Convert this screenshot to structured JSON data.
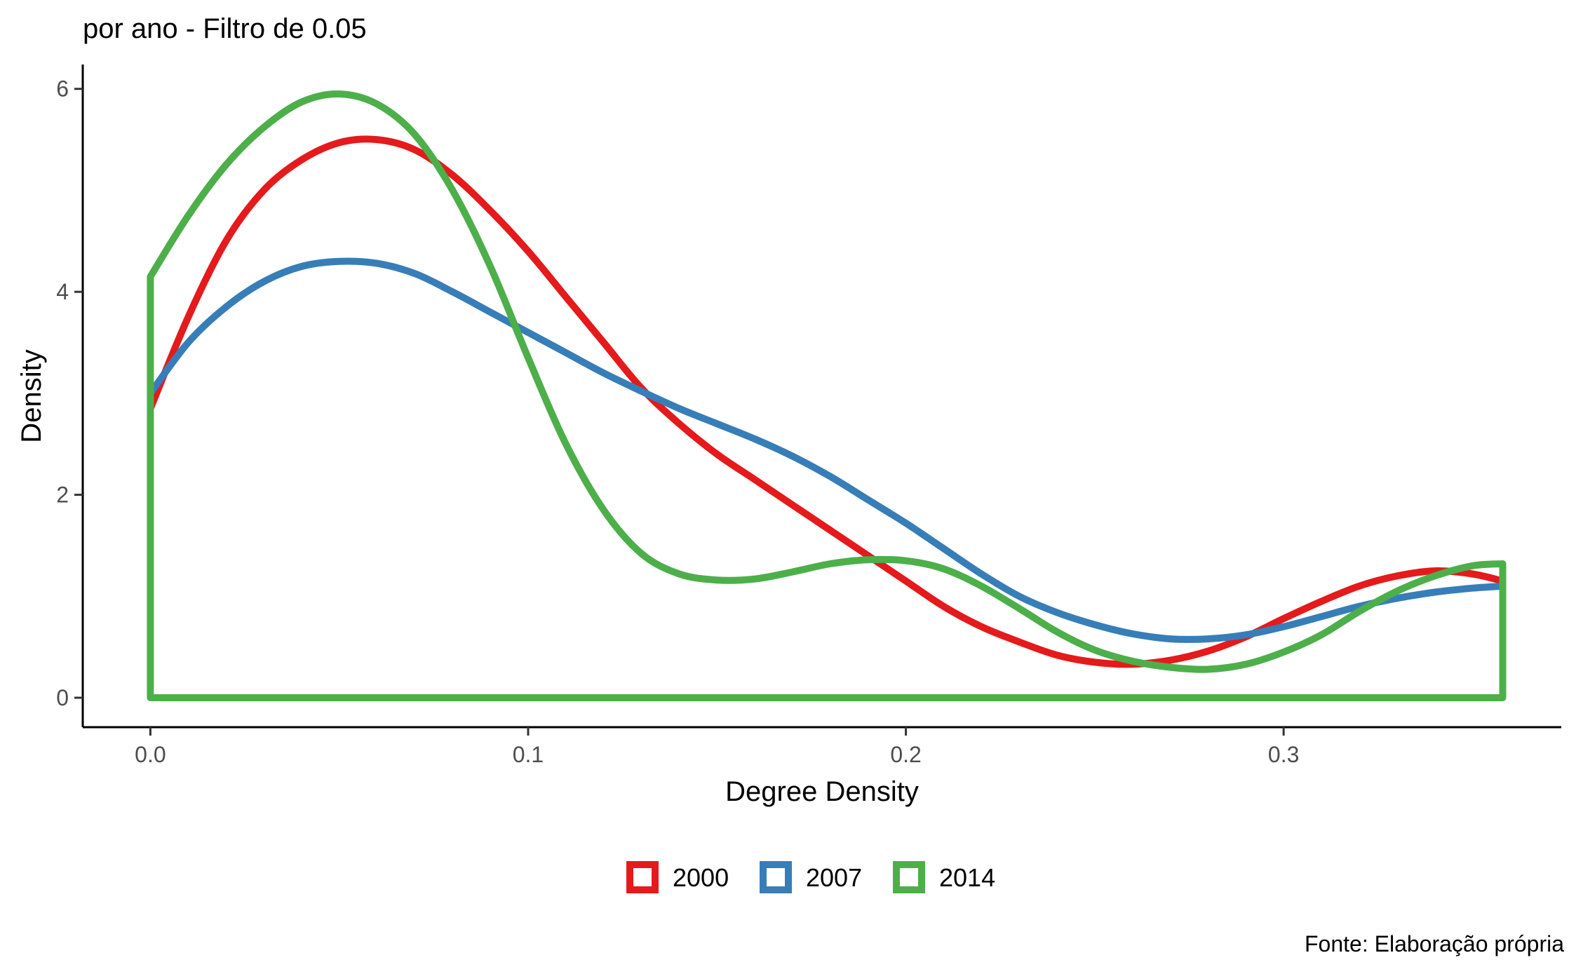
{
  "chart_data": {
    "type": "line",
    "title": "por ano - Filtro de 0.05",
    "xlabel": "Degree Density",
    "ylabel": "Density",
    "caption": "Fonte: Elaboração própria",
    "xlim": [
      -0.0179,
      0.3735
    ],
    "ylim": [
      -0.29,
      6.24
    ],
    "x_ticks": [
      0.0,
      0.1,
      0.2,
      0.3
    ],
    "x_tick_labels": [
      "0.0",
      "0.1",
      "0.2",
      "0.3"
    ],
    "y_ticks": [
      0,
      2,
      4,
      6
    ],
    "y_tick_labels": [
      "0",
      "2",
      "4",
      "6"
    ],
    "grid": false,
    "legend_position": "bottom",
    "series": [
      {
        "name": "2000",
        "color": "#E41A1C",
        "x": [
          0.0,
          0.01,
          0.02,
          0.03,
          0.04,
          0.05,
          0.06,
          0.07,
          0.08,
          0.09,
          0.1,
          0.11,
          0.12,
          0.13,
          0.14,
          0.15,
          0.16,
          0.17,
          0.18,
          0.19,
          0.2,
          0.21,
          0.22,
          0.23,
          0.24,
          0.25,
          0.26,
          0.27,
          0.28,
          0.29,
          0.3,
          0.31,
          0.32,
          0.33,
          0.34,
          0.35,
          0.358
        ],
        "y": [
          2.85,
          3.75,
          4.5,
          5.0,
          5.3,
          5.47,
          5.5,
          5.4,
          5.15,
          4.8,
          4.4,
          3.95,
          3.5,
          3.05,
          2.7,
          2.4,
          2.15,
          1.9,
          1.65,
          1.4,
          1.15,
          0.9,
          0.7,
          0.55,
          0.42,
          0.35,
          0.33,
          0.37,
          0.46,
          0.6,
          0.78,
          0.95,
          1.1,
          1.2,
          1.25,
          1.22,
          1.15
        ]
      },
      {
        "name": "2007",
        "color": "#377EB8",
        "x": [
          0.0,
          0.01,
          0.02,
          0.03,
          0.04,
          0.05,
          0.06,
          0.07,
          0.08,
          0.09,
          0.1,
          0.11,
          0.12,
          0.13,
          0.14,
          0.15,
          0.16,
          0.17,
          0.18,
          0.19,
          0.2,
          0.21,
          0.22,
          0.23,
          0.24,
          0.25,
          0.26,
          0.27,
          0.28,
          0.29,
          0.3,
          0.31,
          0.32,
          0.33,
          0.34,
          0.35,
          0.358
        ],
        "y": [
          3.0,
          3.5,
          3.85,
          4.1,
          4.25,
          4.3,
          4.28,
          4.18,
          4.0,
          3.8,
          3.6,
          3.4,
          3.2,
          3.02,
          2.85,
          2.7,
          2.55,
          2.38,
          2.18,
          1.95,
          1.72,
          1.47,
          1.22,
          1.0,
          0.84,
          0.72,
          0.63,
          0.58,
          0.58,
          0.62,
          0.7,
          0.8,
          0.9,
          0.98,
          1.04,
          1.08,
          1.1
        ]
      },
      {
        "name": "2014",
        "color": "#4DAF4A",
        "closed": true,
        "x": [
          0.0,
          0.01,
          0.02,
          0.03,
          0.04,
          0.05,
          0.06,
          0.07,
          0.08,
          0.09,
          0.1,
          0.11,
          0.12,
          0.13,
          0.14,
          0.15,
          0.16,
          0.17,
          0.18,
          0.19,
          0.2,
          0.21,
          0.22,
          0.23,
          0.24,
          0.25,
          0.26,
          0.27,
          0.28,
          0.29,
          0.3,
          0.31,
          0.32,
          0.33,
          0.34,
          0.35,
          0.358
        ],
        "y": [
          4.15,
          4.75,
          5.25,
          5.62,
          5.87,
          5.95,
          5.85,
          5.55,
          5.0,
          4.25,
          3.35,
          2.5,
          1.85,
          1.42,
          1.22,
          1.16,
          1.17,
          1.24,
          1.32,
          1.36,
          1.35,
          1.27,
          1.1,
          0.88,
          0.65,
          0.47,
          0.36,
          0.3,
          0.28,
          0.33,
          0.45,
          0.62,
          0.85,
          1.05,
          1.2,
          1.3,
          1.32
        ]
      }
    ]
  }
}
